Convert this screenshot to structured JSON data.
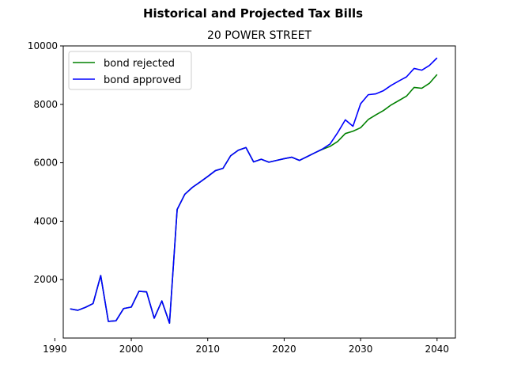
{
  "chart_data": {
    "type": "line",
    "suptitle": "Historical and Projected Tax Bills",
    "title": "20 POWER STREET",
    "xlabel": "",
    "ylabel": "",
    "xlim": [
      1991.1,
      2042.4
    ],
    "ylim": [
      0,
      10000
    ],
    "xticks": [
      1990,
      2000,
      2010,
      2020,
      2030,
      2040
    ],
    "yticks": [
      2000,
      4000,
      6000,
      8000,
      10000
    ],
    "legend_position": "top-left",
    "grid": false,
    "series": [
      {
        "name": "bond rejected",
        "color": "#008000",
        "x": [
          1992,
          1993,
          1994,
          1995,
          1996,
          1997,
          1998,
          1999,
          2000,
          2001,
          2002,
          2003,
          2004,
          2005,
          2006,
          2007,
          2008,
          2009,
          2010,
          2011,
          2012,
          2013,
          2014,
          2015,
          2016,
          2017,
          2018,
          2019,
          2020,
          2021,
          2022,
          2023,
          2024,
          2025,
          2026,
          2027,
          2028,
          2029,
          2030,
          2031,
          2032,
          2033,
          2034,
          2035,
          2036,
          2037,
          2038,
          2039,
          2040
        ],
        "y": [
          1000,
          950,
          1050,
          1180,
          2140,
          570,
          590,
          1010,
          1060,
          1600,
          1580,
          680,
          1270,
          510,
          4400,
          4920,
          5160,
          5340,
          5530,
          5730,
          5810,
          6240,
          6430,
          6520,
          6030,
          6120,
          6020,
          6080,
          6140,
          6190,
          6080,
          6210,
          6340,
          6460,
          6560,
          6730,
          7000,
          7080,
          7200,
          7480,
          7640,
          7790,
          7980,
          8130,
          8280,
          8580,
          8550,
          8720,
          9020
        ]
      },
      {
        "name": "bond approved",
        "color": "#0000ff",
        "x": [
          1992,
          1993,
          1994,
          1995,
          1996,
          1997,
          1998,
          1999,
          2000,
          2001,
          2002,
          2003,
          2004,
          2005,
          2006,
          2007,
          2008,
          2009,
          2010,
          2011,
          2012,
          2013,
          2014,
          2015,
          2016,
          2017,
          2018,
          2019,
          2020,
          2021,
          2022,
          2023,
          2024,
          2025,
          2026,
          2027,
          2028,
          2029,
          2030,
          2031,
          2032,
          2033,
          2034,
          2035,
          2036,
          2037,
          2038,
          2039,
          2040
        ],
        "y": [
          1000,
          950,
          1050,
          1180,
          2140,
          570,
          590,
          1010,
          1060,
          1600,
          1580,
          680,
          1270,
          510,
          4400,
          4920,
          5160,
          5340,
          5530,
          5730,
          5810,
          6240,
          6430,
          6520,
          6030,
          6120,
          6020,
          6080,
          6140,
          6190,
          6080,
          6210,
          6340,
          6470,
          6640,
          7030,
          7470,
          7250,
          8020,
          8330,
          8360,
          8470,
          8650,
          8800,
          8940,
          9230,
          9170,
          9330,
          9590
        ]
      }
    ]
  }
}
